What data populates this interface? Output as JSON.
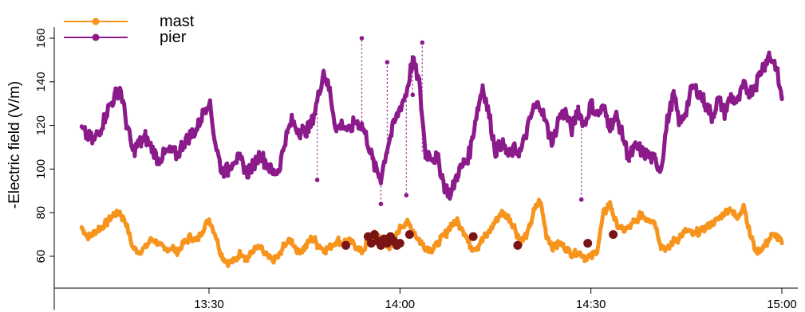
{
  "chart_data": {
    "type": "line",
    "title": "",
    "xlabel": "",
    "ylabel": "-Electric field (V/m)",
    "x_range_minutes": [
      0,
      100
    ],
    "x_ticks": [
      {
        "label": "13:30",
        "minute": 20
      },
      {
        "label": "14:00",
        "minute": 50
      },
      {
        "label": "14:30",
        "minute": 80
      },
      {
        "label": "15:00",
        "minute": 110
      }
    ],
    "x_domain_minutes": [
      -6,
      110
    ],
    "ylim": [
      50,
      170
    ],
    "y_ticks": [
      60,
      80,
      100,
      120,
      140,
      160
    ],
    "grid": false,
    "legend": {
      "placement": "top-left"
    },
    "series": [
      {
        "name": "mast",
        "color": "#f7941d",
        "x": [
          0,
          1,
          2,
          3,
          4,
          5,
          6,
          7,
          8,
          9,
          10,
          11,
          12,
          13,
          14,
          15,
          16,
          17,
          18,
          19,
          20,
          21,
          22,
          23,
          24,
          25,
          26,
          27,
          28,
          29,
          30,
          31,
          32,
          33,
          34,
          35,
          36,
          37,
          38,
          39,
          40,
          41,
          42,
          43,
          44,
          45,
          46,
          47,
          48,
          49,
          50,
          51,
          52,
          53,
          54,
          55,
          56,
          57,
          58,
          59,
          60,
          61,
          62,
          63,
          64,
          65,
          66,
          67,
          68,
          69,
          70,
          71,
          72,
          73,
          74,
          75,
          76,
          77,
          78,
          79,
          80,
          81,
          82,
          83,
          84,
          85,
          86,
          87,
          88,
          89,
          90,
          91,
          92,
          93,
          94,
          95,
          96,
          97,
          98,
          99,
          100,
          101,
          102,
          103,
          104,
          105,
          106,
          107,
          108,
          109,
          110
        ],
        "values": [
          73,
          69,
          71,
          73,
          76,
          79,
          80,
          75,
          64,
          62,
          64,
          68,
          66,
          63,
          64,
          62,
          66,
          69,
          67,
          72,
          77,
          70,
          60,
          57,
          58,
          62,
          59,
          63,
          64,
          60,
          58,
          60,
          66,
          67,
          62,
          64,
          68,
          66,
          63,
          64,
          67,
          66,
          67,
          65,
          62,
          66,
          70,
          68,
          64,
          67,
          73,
          76,
          72,
          67,
          64,
          63,
          66,
          70,
          74,
          76,
          72,
          65,
          64,
          68,
          71,
          76,
          80,
          78,
          73,
          67,
          70,
          80,
          86,
          70,
          64,
          66,
          64,
          61,
          62,
          60,
          59,
          63,
          80,
          84,
          75,
          72,
          73,
          76,
          79,
          77,
          76,
          65,
          63,
          67,
          69,
          72,
          70,
          71,
          73,
          75,
          77,
          80,
          82,
          77,
          84,
          70,
          62,
          64,
          68,
          70,
          66
        ],
        "highlight_points": [
          {
            "x": 41.5,
            "y": 65
          },
          {
            "x": 45.0,
            "y": 69
          },
          {
            "x": 45.5,
            "y": 66
          },
          {
            "x": 46.0,
            "y": 70
          },
          {
            "x": 46.5,
            "y": 67
          },
          {
            "x": 47.0,
            "y": 65
          },
          {
            "x": 47.5,
            "y": 68
          },
          {
            "x": 48.0,
            "y": 66
          },
          {
            "x": 48.5,
            "y": 69
          },
          {
            "x": 49.0,
            "y": 67
          },
          {
            "x": 49.5,
            "y": 65
          },
          {
            "x": 50.0,
            "y": 66
          },
          {
            "x": 51.5,
            "y": 70
          },
          {
            "x": 61.5,
            "y": 69
          },
          {
            "x": 68.5,
            "y": 65
          },
          {
            "x": 79.5,
            "y": 66
          },
          {
            "x": 83.5,
            "y": 70
          }
        ],
        "highlight_color": "#7b1414"
      },
      {
        "name": "pier",
        "color": "#8b1a8b",
        "x": [
          0,
          1,
          2,
          3,
          4,
          5,
          6,
          7,
          8,
          9,
          10,
          11,
          12,
          13,
          14,
          15,
          16,
          17,
          18,
          19,
          20,
          21,
          22,
          23,
          24,
          25,
          26,
          27,
          28,
          29,
          30,
          31,
          32,
          33,
          34,
          35,
          36,
          37,
          38,
          39,
          40,
          41,
          42,
          43,
          44,
          45,
          46,
          47,
          48,
          49,
          50,
          51,
          52,
          53,
          54,
          55,
          56,
          57,
          58,
          59,
          60,
          61,
          62,
          63,
          64,
          65,
          66,
          67,
          68,
          69,
          70,
          71,
          72,
          73,
          74,
          75,
          76,
          77,
          78,
          79,
          80,
          81,
          82,
          83,
          84,
          85,
          86,
          87,
          88,
          89,
          90,
          91,
          92,
          93,
          94,
          95,
          96,
          97,
          98,
          99,
          100,
          101,
          102,
          103,
          104,
          105,
          106,
          107,
          108,
          109,
          110
        ],
        "values": [
          118,
          115,
          113,
          119,
          127,
          132,
          138,
          122,
          108,
          112,
          114,
          110,
          104,
          107,
          108,
          106,
          112,
          115,
          118,
          125,
          132,
          112,
          99,
          100,
          105,
          104,
          98,
          102,
          107,
          103,
          98,
          100,
          114,
          122,
          118,
          117,
          120,
          131,
          145,
          135,
          118,
          121,
          117,
          122,
          120,
          112,
          101,
          96,
          110,
          120,
          128,
          135,
          150,
          140,
          108,
          106,
          104,
          92,
          88,
          98,
          102,
          108,
          125,
          138,
          125,
          108,
          112,
          106,
          109,
          108,
          118,
          128,
          130,
          120,
          112,
          124,
          126,
          118,
          127,
          120,
          130,
          125,
          128,
          120,
          124,
          115,
          105,
          110,
          108,
          106,
          104,
          100,
          122,
          134,
          120,
          128,
          138,
          135,
          130,
          124,
          132,
          126,
          133,
          130,
          138,
          135,
          140,
          147,
          152,
          148,
          132
        ],
        "spikes": [
          {
            "x": 44,
            "y": 160
          },
          {
            "x": 48,
            "y": 149
          },
          {
            "x": 53.5,
            "y": 158
          },
          {
            "x": 52,
            "y": 134
          },
          {
            "x": 47,
            "y": 84
          },
          {
            "x": 51,
            "y": 88
          },
          {
            "x": 37,
            "y": 95
          },
          {
            "x": 78.5,
            "y": 86
          }
        ]
      }
    ]
  }
}
